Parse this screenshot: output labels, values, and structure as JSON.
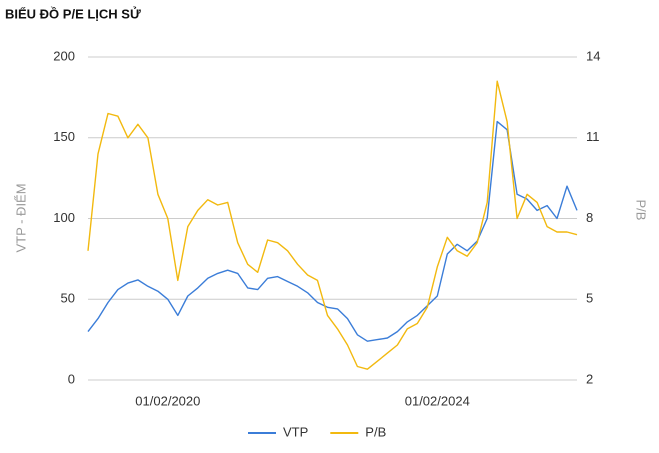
{
  "chart_data": {
    "type": "line",
    "title": "BIỂU ĐỒ P/E LỊCH SỬ",
    "y_label": "VTP - ĐIỂM",
    "y2_label": "P/B",
    "categories": [
      null,
      null,
      null,
      null,
      null,
      null,
      null,
      null,
      "01/02/2020",
      null,
      null,
      null,
      null,
      null,
      null,
      null,
      null,
      null,
      null,
      null,
      null,
      null,
      null,
      null,
      null,
      null,
      null,
      null,
      null,
      null,
      null,
      null,
      null,
      null,
      null,
      "01/02/2024",
      null,
      null,
      null,
      null,
      null,
      null,
      null,
      null,
      null,
      null,
      null,
      null,
      null,
      null
    ],
    "series": [
      {
        "name": "VTP",
        "color": "#3b7dd8",
        "values": [
          30,
          38,
          48,
          56,
          60,
          62,
          58,
          55,
          50,
          40,
          52,
          57,
          63,
          66,
          68,
          66,
          57,
          56,
          63,
          64,
          61,
          58,
          54,
          48,
          45,
          44,
          38,
          28,
          24,
          25,
          26,
          30,
          36,
          40,
          46,
          52,
          78,
          84,
          80,
          86,
          100,
          160,
          155,
          115,
          112,
          105,
          108,
          100,
          120,
          105
        ]
      },
      {
        "name": "P/B",
        "color": "#f2b90f",
        "axis": "y2",
        "values": [
          6.8,
          10.4,
          11.9,
          11.8,
          11.0,
          11.5,
          11.0,
          8.9,
          8.0,
          5.7,
          7.7,
          8.3,
          8.7,
          8.5,
          8.6,
          7.1,
          6.3,
          6.0,
          7.2,
          7.1,
          6.8,
          6.3,
          5.9,
          5.7,
          4.4,
          3.9,
          3.3,
          2.5,
          2.4,
          2.7,
          3.0,
          3.3,
          3.9,
          4.1,
          4.7,
          6.2,
          7.3,
          6.8,
          6.6,
          7.1,
          8.6,
          13.1,
          11.6,
          8.0,
          8.9,
          8.6,
          7.7,
          7.5,
          7.5,
          7.4
        ]
      }
    ],
    "ylim": [
      0,
      200
    ],
    "yticks": [
      0,
      50,
      100,
      150,
      200
    ],
    "y2lim": [
      2,
      14
    ],
    "y2ticks": [
      2,
      5,
      8,
      11,
      14
    ],
    "grid": true,
    "legend": "bottom"
  }
}
